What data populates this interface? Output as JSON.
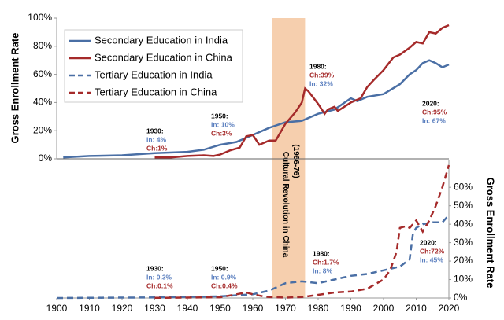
{
  "chart_data": {
    "type": "line",
    "y_label": "Gross Enrollment Rate",
    "y2_label": "Gross Enrollment Rate",
    "xlim": [
      1900,
      2020
    ],
    "xticks": [
      1900,
      1910,
      1920,
      1930,
      1940,
      1950,
      1960,
      1970,
      1980,
      1990,
      2000,
      2010,
      2020
    ],
    "ylim": [
      0,
      100
    ],
    "yticks": [
      {
        "value": 0,
        "label": "0%"
      },
      {
        "value": 20,
        "label": "20%"
      },
      {
        "value": 40,
        "label": "40%"
      },
      {
        "value": 60,
        "label": "60%"
      },
      {
        "value": 80,
        "label": "80%"
      },
      {
        "value": 100,
        "label": "100%"
      }
    ],
    "y2lim": [
      0,
      75
    ],
    "y2ticks": [
      {
        "value": 0,
        "label": "0%"
      },
      {
        "value": 10,
        "label": "10%"
      },
      {
        "value": 20,
        "label": "20%"
      },
      {
        "value": 30,
        "label": "30%"
      },
      {
        "value": 40,
        "label": "40%"
      },
      {
        "value": 50,
        "label": "50%"
      },
      {
        "value": 60,
        "label": "60%"
      }
    ],
    "series": [
      {
        "name": "Secondary Education in India",
        "color": "#4a6fa5",
        "dashed": false,
        "x": [
          1902,
          1910,
          1920,
          1930,
          1940,
          1945,
          1950,
          1955,
          1960,
          1965,
          1970,
          1975,
          1980,
          1985,
          1990,
          1992,
          1995,
          2000,
          2005,
          2008,
          2010,
          2012,
          2014,
          2016,
          2018,
          2020
        ],
        "values": [
          1,
          2,
          2.5,
          4,
          5,
          6.5,
          10,
          12,
          17,
          22,
          26,
          27,
          32,
          35,
          43,
          41,
          44,
          46,
          53,
          60,
          63,
          68,
          70,
          68,
          65,
          67
        ]
      },
      {
        "name": "Secondary Education in China",
        "color": "#a52a2a",
        "dashed": false,
        "x": [
          1930,
          1935,
          1940,
          1945,
          1948,
          1950,
          1953,
          1956,
          1958,
          1960,
          1962,
          1965,
          1967,
          1970,
          1973,
          1975,
          1976,
          1977,
          1979,
          1980,
          1982,
          1983,
          1985,
          1986,
          1988,
          1990,
          1993,
          1995,
          1997,
          2000,
          2003,
          2005,
          2008,
          2010,
          2012,
          2014,
          2016,
          2018,
          2020
        ],
        "values": [
          1,
          1,
          2,
          2.5,
          2,
          3,
          6,
          8,
          16,
          17,
          10,
          13,
          13,
          25,
          33,
          40,
          50,
          48,
          42,
          39,
          32,
          35,
          37,
          34,
          37,
          40,
          43,
          51,
          56,
          63,
          72,
          74,
          79,
          83,
          82,
          90,
          89,
          93,
          95
        ]
      },
      {
        "name": "Tertiary Education in India",
        "color": "#4a6fa5",
        "dashed": true,
        "axis": "y2",
        "x": [
          1900,
          1930,
          1950,
          1960,
          1965,
          1970,
          1975,
          1980,
          1985,
          1990,
          1995,
          2000,
          2005,
          2008,
          2009,
          2010,
          2012,
          2015,
          2018,
          2019,
          2020
        ],
        "values": [
          0,
          0.3,
          0.9,
          2,
          4,
          8,
          9,
          8,
          10,
          12,
          13,
          15,
          17,
          21,
          35,
          38,
          40,
          41,
          41,
          43,
          45
        ]
      },
      {
        "name": "Tertiary Education in China",
        "color": "#a52a2a",
        "dashed": true,
        "axis": "y2",
        "x": [
          1930,
          1950,
          1958,
          1960,
          1963,
          1965,
          1970,
          1975,
          1977,
          1980,
          1985,
          1990,
          1995,
          2000,
          2002,
          2004,
          2005,
          2007,
          2008,
          2010,
          2012,
          2014,
          2016,
          2018,
          2020
        ],
        "values": [
          0.1,
          0.4,
          3,
          2,
          1,
          0.5,
          0.2,
          0.5,
          1,
          1.7,
          3,
          3.5,
          5,
          10,
          15,
          25,
          38,
          39,
          38,
          42,
          36,
          42,
          50,
          60,
          72
        ]
      }
    ],
    "shaded": {
      "x": [
        1966,
        1976
      ],
      "color": "#f5c7a0",
      "label": "(1966-76)",
      "label2": "Cultural Revolution in China"
    },
    "annotations": [
      {
        "year": "1930:",
        "lines": [
          {
            "text": "In: 4%",
            "who": "india"
          },
          {
            "text": "Ch:1%",
            "who": "china"
          }
        ]
      },
      {
        "year": "1950:",
        "lines": [
          {
            "text": "In: 10%",
            "who": "india"
          },
          {
            "text": "Ch:3%",
            "who": "china"
          }
        ]
      },
      {
        "year": "1980:",
        "lines": [
          {
            "text": "Ch:39%",
            "who": "china"
          },
          {
            "text": "In: 32%",
            "who": "india"
          }
        ]
      },
      {
        "year": "2020:",
        "lines": [
          {
            "text": "Ch:95%",
            "who": "china"
          },
          {
            "text": "In: 67%",
            "who": "india"
          }
        ]
      },
      {
        "year": "1930:",
        "lines": [
          {
            "text": "In: 0.3%",
            "who": "india"
          },
          {
            "text": "Ch:0.1%",
            "who": "china"
          }
        ]
      },
      {
        "year": "1950:",
        "lines": [
          {
            "text": "In: 0.9%",
            "who": "india"
          },
          {
            "text": "Ch:0.4%",
            "who": "china"
          }
        ]
      },
      {
        "year": "1980:",
        "lines": [
          {
            "text": "Ch:1.7%",
            "who": "china"
          },
          {
            "text": "In: 8%",
            "who": "india"
          }
        ]
      },
      {
        "year": "2020:",
        "lines": [
          {
            "text": "Ch:72%",
            "who": "china"
          },
          {
            "text": "In: 45%",
            "who": "india"
          }
        ]
      }
    ]
  }
}
